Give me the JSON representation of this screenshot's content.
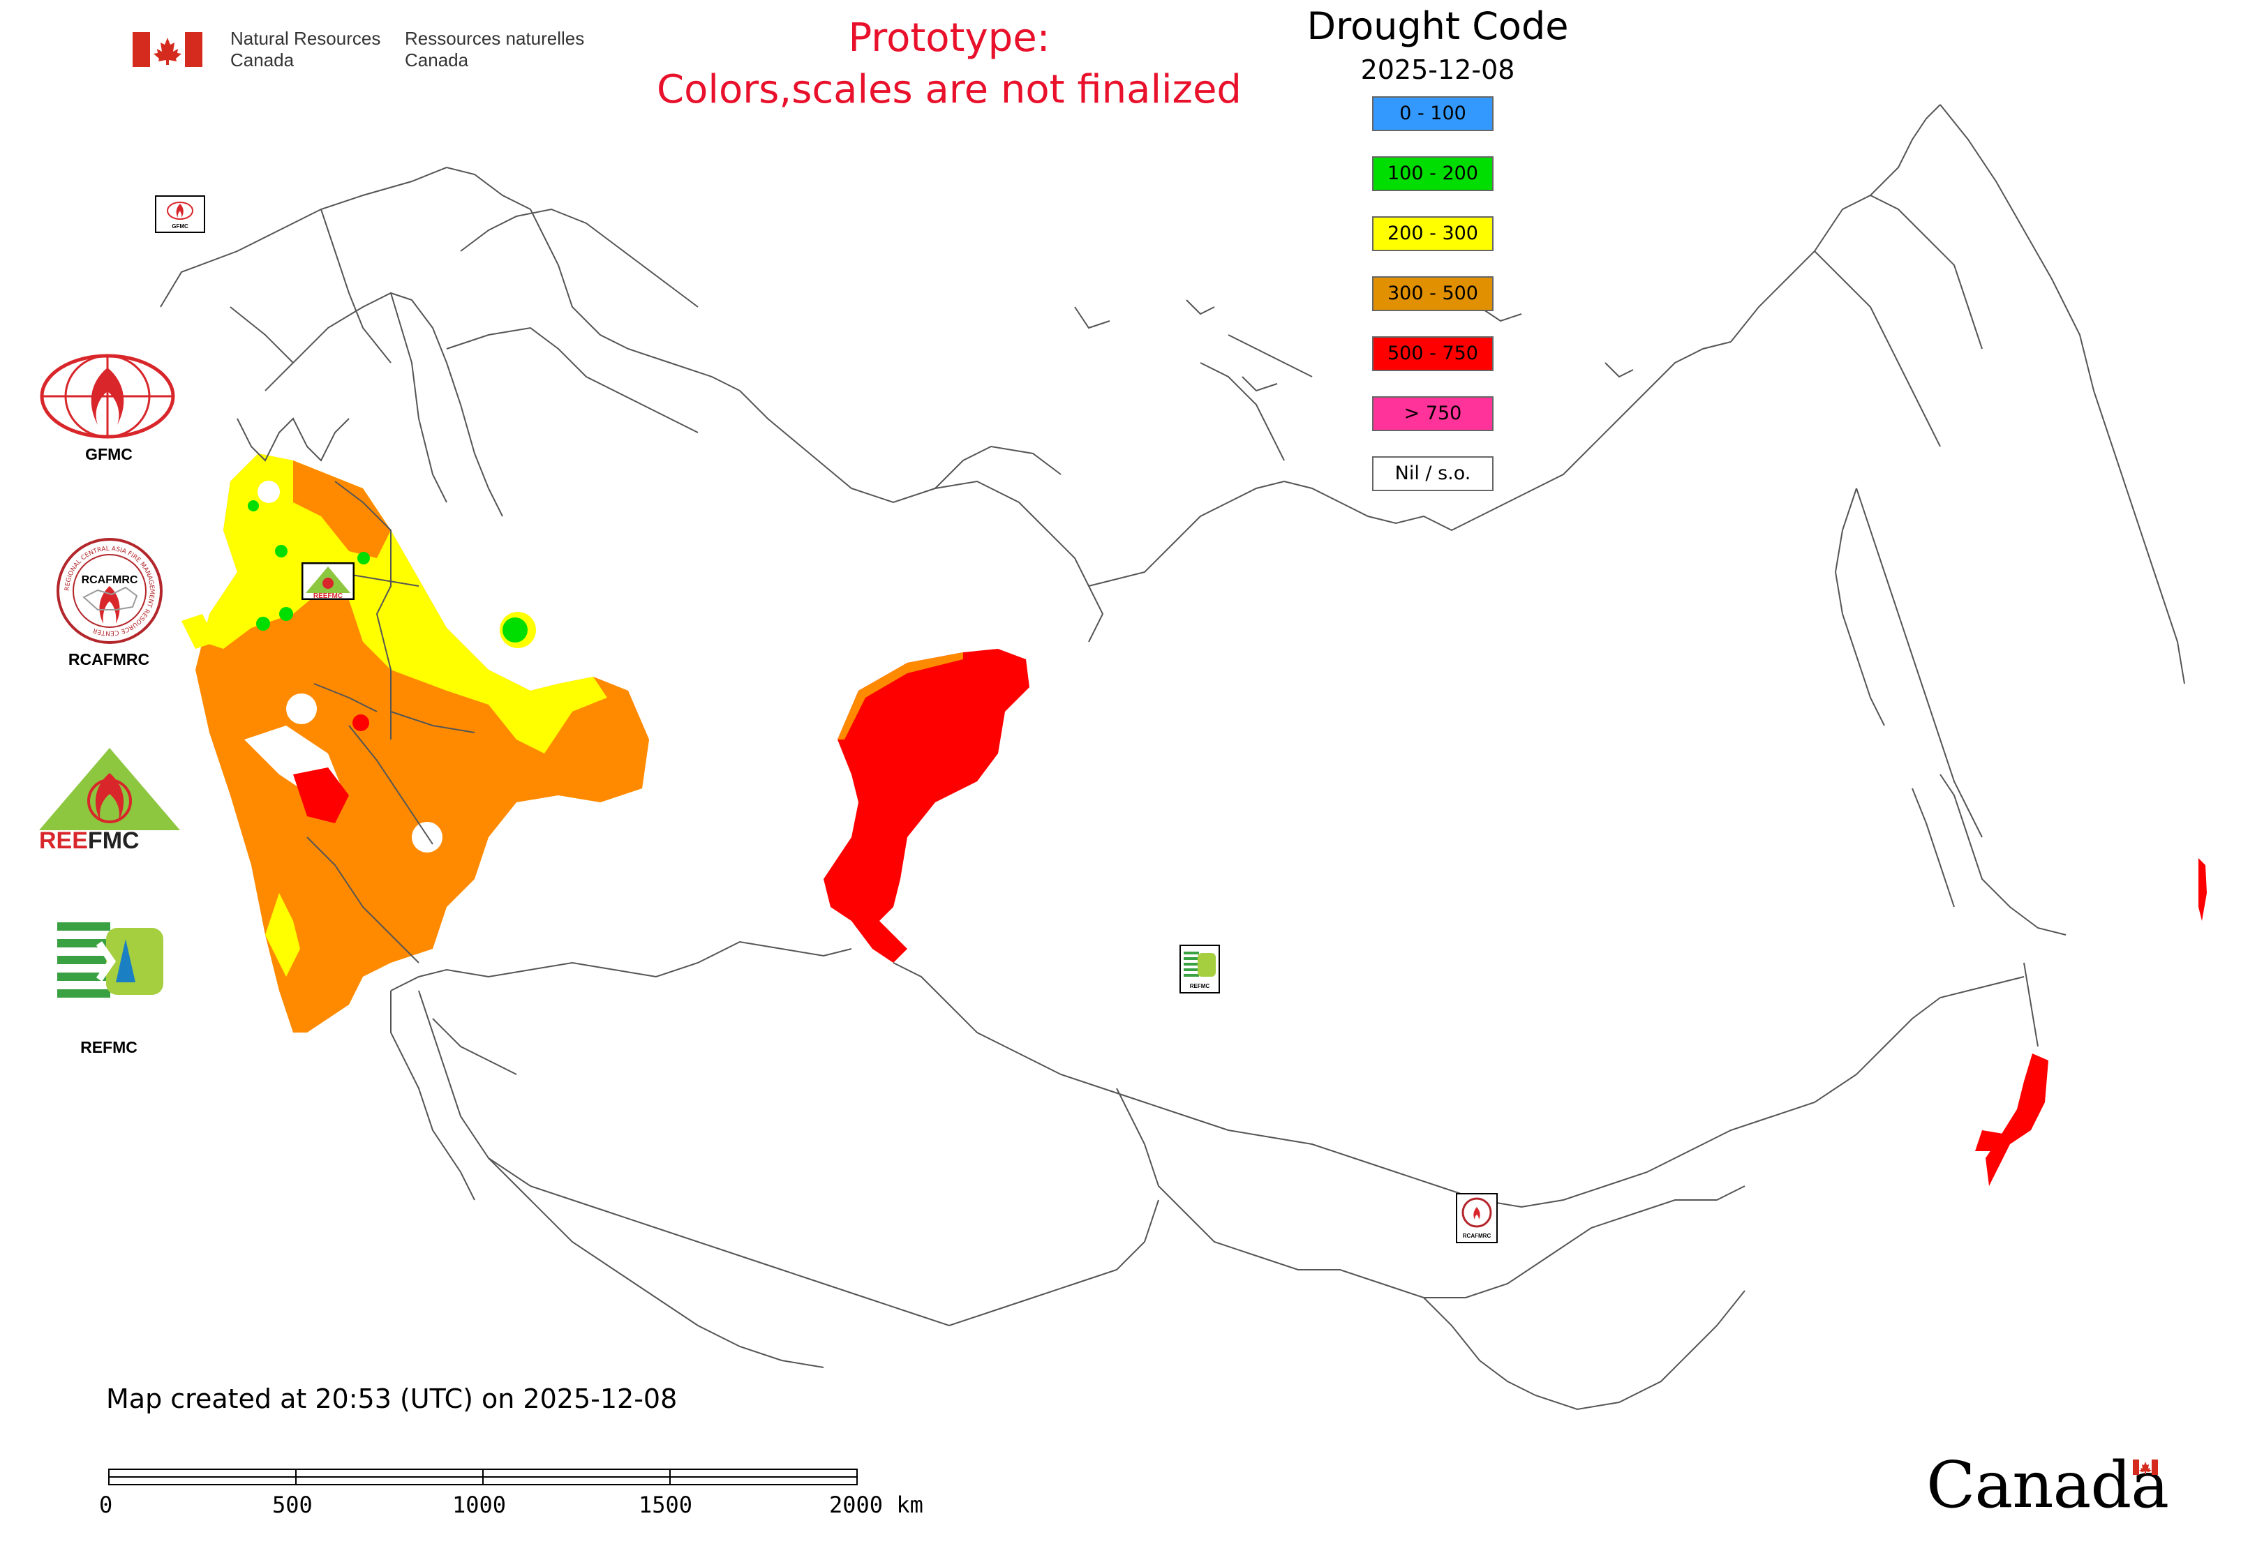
{
  "header": {
    "nrcan_en": "Natural Resources\nCanada",
    "nrcan_fr": "Ressources naturelles\nCanada",
    "prototype_line1": "Prototype:",
    "prototype_line2": "Colors,scales are not finalized"
  },
  "legend": {
    "title": "Drought Code",
    "date": "2025-12-08",
    "classes": [
      {
        "label": "0 - 100",
        "color": "#3399ff"
      },
      {
        "label": "100 - 200",
        "color": "#00dd00"
      },
      {
        "label": "200 - 300",
        "color": "#ffff00"
      },
      {
        "label": "300 - 500",
        "color": "#e09000"
      },
      {
        "label": "500 - 750",
        "color": "#ff0000"
      },
      {
        "label": "> 750",
        "color": "#ff3399"
      },
      {
        "label": "Nil / s.o.",
        "color": "#ffffff"
      }
    ]
  },
  "logos": {
    "gfmc": "GFMC",
    "rcafmrc": "RCAFMRC",
    "reefmc": "REEFMC",
    "refmc": "REFMC",
    "rcafmrc_ring_text": "REGIONAL CENTRAL ASIA FIRE MANAGEMENT RESOURCE CENTER",
    "reefmc_word_red": "REE",
    "reefmc_word_dark": "FMC"
  },
  "footer": {
    "created": "Map created at 20:53 (UTC) on 2025-12-08",
    "scale_ticks": [
      "0",
      "500",
      "1000",
      "1500",
      "2000 km"
    ],
    "wordmark": "Canada"
  }
}
